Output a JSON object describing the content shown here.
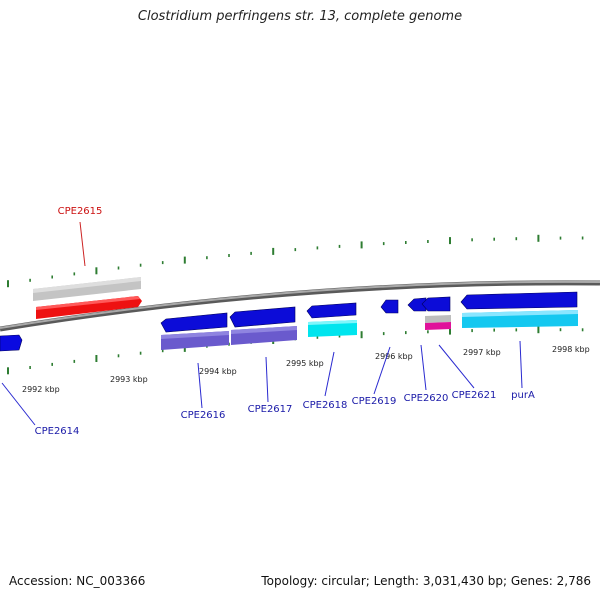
{
  "title": "Clostridium perfringens str. 13, complete genome",
  "footer": {
    "accession": "Accession: NC_003366",
    "summary": "Topology: circular; Length: 3,031,430 bp; Genes: 2,786"
  },
  "colors": {
    "backbone": "#808080",
    "tick": "#2e7d32",
    "label_blue": "#1a1aa8",
    "label_red": "#cc1111",
    "leader_blue": "#2a2ad0",
    "leader_red": "#cc2222"
  },
  "axis": {
    "tick_labels": [
      "2992 kbp",
      "2993 kbp",
      "2994 kbp",
      "2995 kbp",
      "2996 kbp",
      "2997 kbp",
      "2998 kbp"
    ]
  },
  "genes": [
    {
      "name": "CPE2614",
      "color": "blue"
    },
    {
      "name": "CPE2615",
      "color": "red"
    },
    {
      "name": "CPE2616",
      "color": "blue"
    },
    {
      "name": "CPE2617",
      "color": "blue"
    },
    {
      "name": "CPE2618",
      "color": "blue"
    },
    {
      "name": "CPE2619",
      "color": "blue"
    },
    {
      "name": "CPE2620",
      "color": "blue"
    },
    {
      "name": "CPE2621",
      "color": "blue"
    },
    {
      "name": "purA",
      "color": "blue"
    }
  ]
}
